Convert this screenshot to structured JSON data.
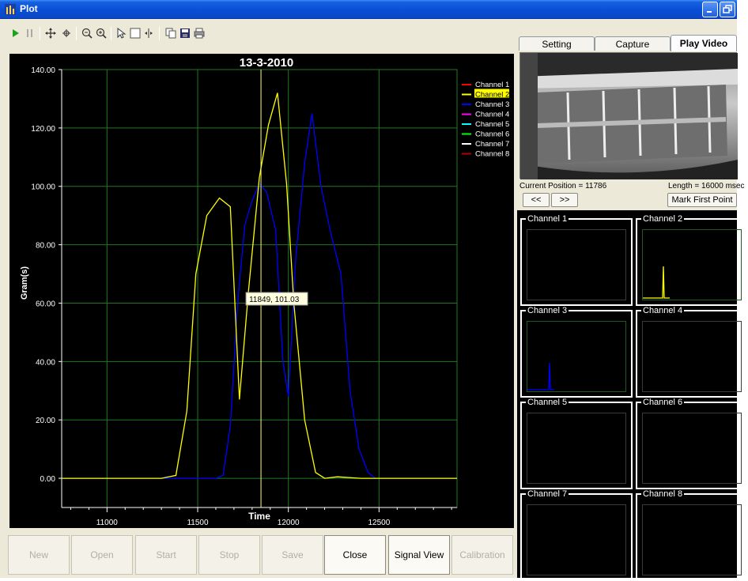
{
  "window": {
    "title": "Plot"
  },
  "plot": {
    "title": "13-3-2010",
    "tooltip": "11849, 101.03",
    "legend": [
      "Channel 1",
      "Channel 2",
      "Channel 3",
      "Channel 4",
      "Channel 5",
      "Channel 6",
      "Channel 7",
      "Channel 8"
    ],
    "legend_colors": [
      "#ff0000",
      "#ffff00",
      "#0000ff",
      "#ff00ff",
      "#00ffff",
      "#00ff00",
      "#ffffff",
      "#b00000"
    ],
    "highlighted_legend": "Channel 2"
  },
  "chart_data": {
    "type": "line",
    "title": "13-3-2010",
    "xlabel": "Time",
    "ylabel": "Gram(s)",
    "xlim": [
      10750,
      12930
    ],
    "ylim": [
      -10,
      140
    ],
    "xticks": [
      11000,
      11500,
      12000,
      12500
    ],
    "yticks": [
      "0.00",
      "20.00",
      "40.00",
      "60.00",
      "80.00",
      "100.00",
      "120.00",
      "140.00"
    ],
    "grid": true,
    "legend_position": "top-right",
    "cursor_x": 11849,
    "series": [
      {
        "name": "Channel 2",
        "color": "#ffff00",
        "x": [
          10750,
          11300,
          11380,
          11440,
          11490,
          11550,
          11620,
          11680,
          11730,
          11780,
          11840,
          11890,
          11940,
          11990,
          12030,
          12090,
          12150,
          12200,
          12270,
          12400,
          12930
        ],
        "y": [
          0,
          0,
          1,
          23,
          70,
          90,
          96,
          93,
          27,
          64,
          103,
          121,
          132,
          101,
          60,
          20,
          2,
          0,
          0.5,
          0,
          0
        ]
      },
      {
        "name": "Channel 3",
        "color": "#0000ff",
        "x": [
          10750,
          11600,
          11640,
          11680,
          11720,
          11760,
          11800,
          11840,
          11880,
          11930,
          11970,
          12000,
          12040,
          12090,
          12130,
          12180,
          12230,
          12290,
          12340,
          12390,
          12440,
          12480,
          12930
        ],
        "y": [
          0,
          0,
          1,
          18,
          60,
          87,
          95,
          101,
          98,
          85,
          40,
          28,
          75,
          108,
          125,
          100,
          85,
          70,
          30,
          10,
          2,
          0,
          0
        ]
      }
    ]
  },
  "toolbar": {
    "items": [
      "play-icon",
      "pause-icon",
      "pan-icon",
      "zoom-area-icon",
      "zoom-out-icon",
      "zoom-in-icon",
      "pointer-icon",
      "select-box-icon",
      "cursor-icon",
      "copy-icon",
      "save-icon",
      "print-icon"
    ]
  },
  "buttons": {
    "new": "New",
    "open": "Open",
    "start": "Start",
    "stop": "Stop",
    "save": "Save",
    "close": "Close",
    "signal_view": "Signal View",
    "calibration": "Calibration"
  },
  "right_panel": {
    "tabs": [
      "Setting",
      "Capture",
      "Play Video"
    ],
    "active_tab": "Play Video",
    "current_position": "Current Position = 11786",
    "length": "Length = 16000 msec",
    "prev": "<<",
    "next": ">>",
    "mark_first_point": "Mark First Point",
    "channels": [
      "Channel 1",
      "Channel 2",
      "Channel 3",
      "Channel 4",
      "Channel 5",
      "Channel 6",
      "Channel 7",
      "Channel 8"
    ]
  }
}
